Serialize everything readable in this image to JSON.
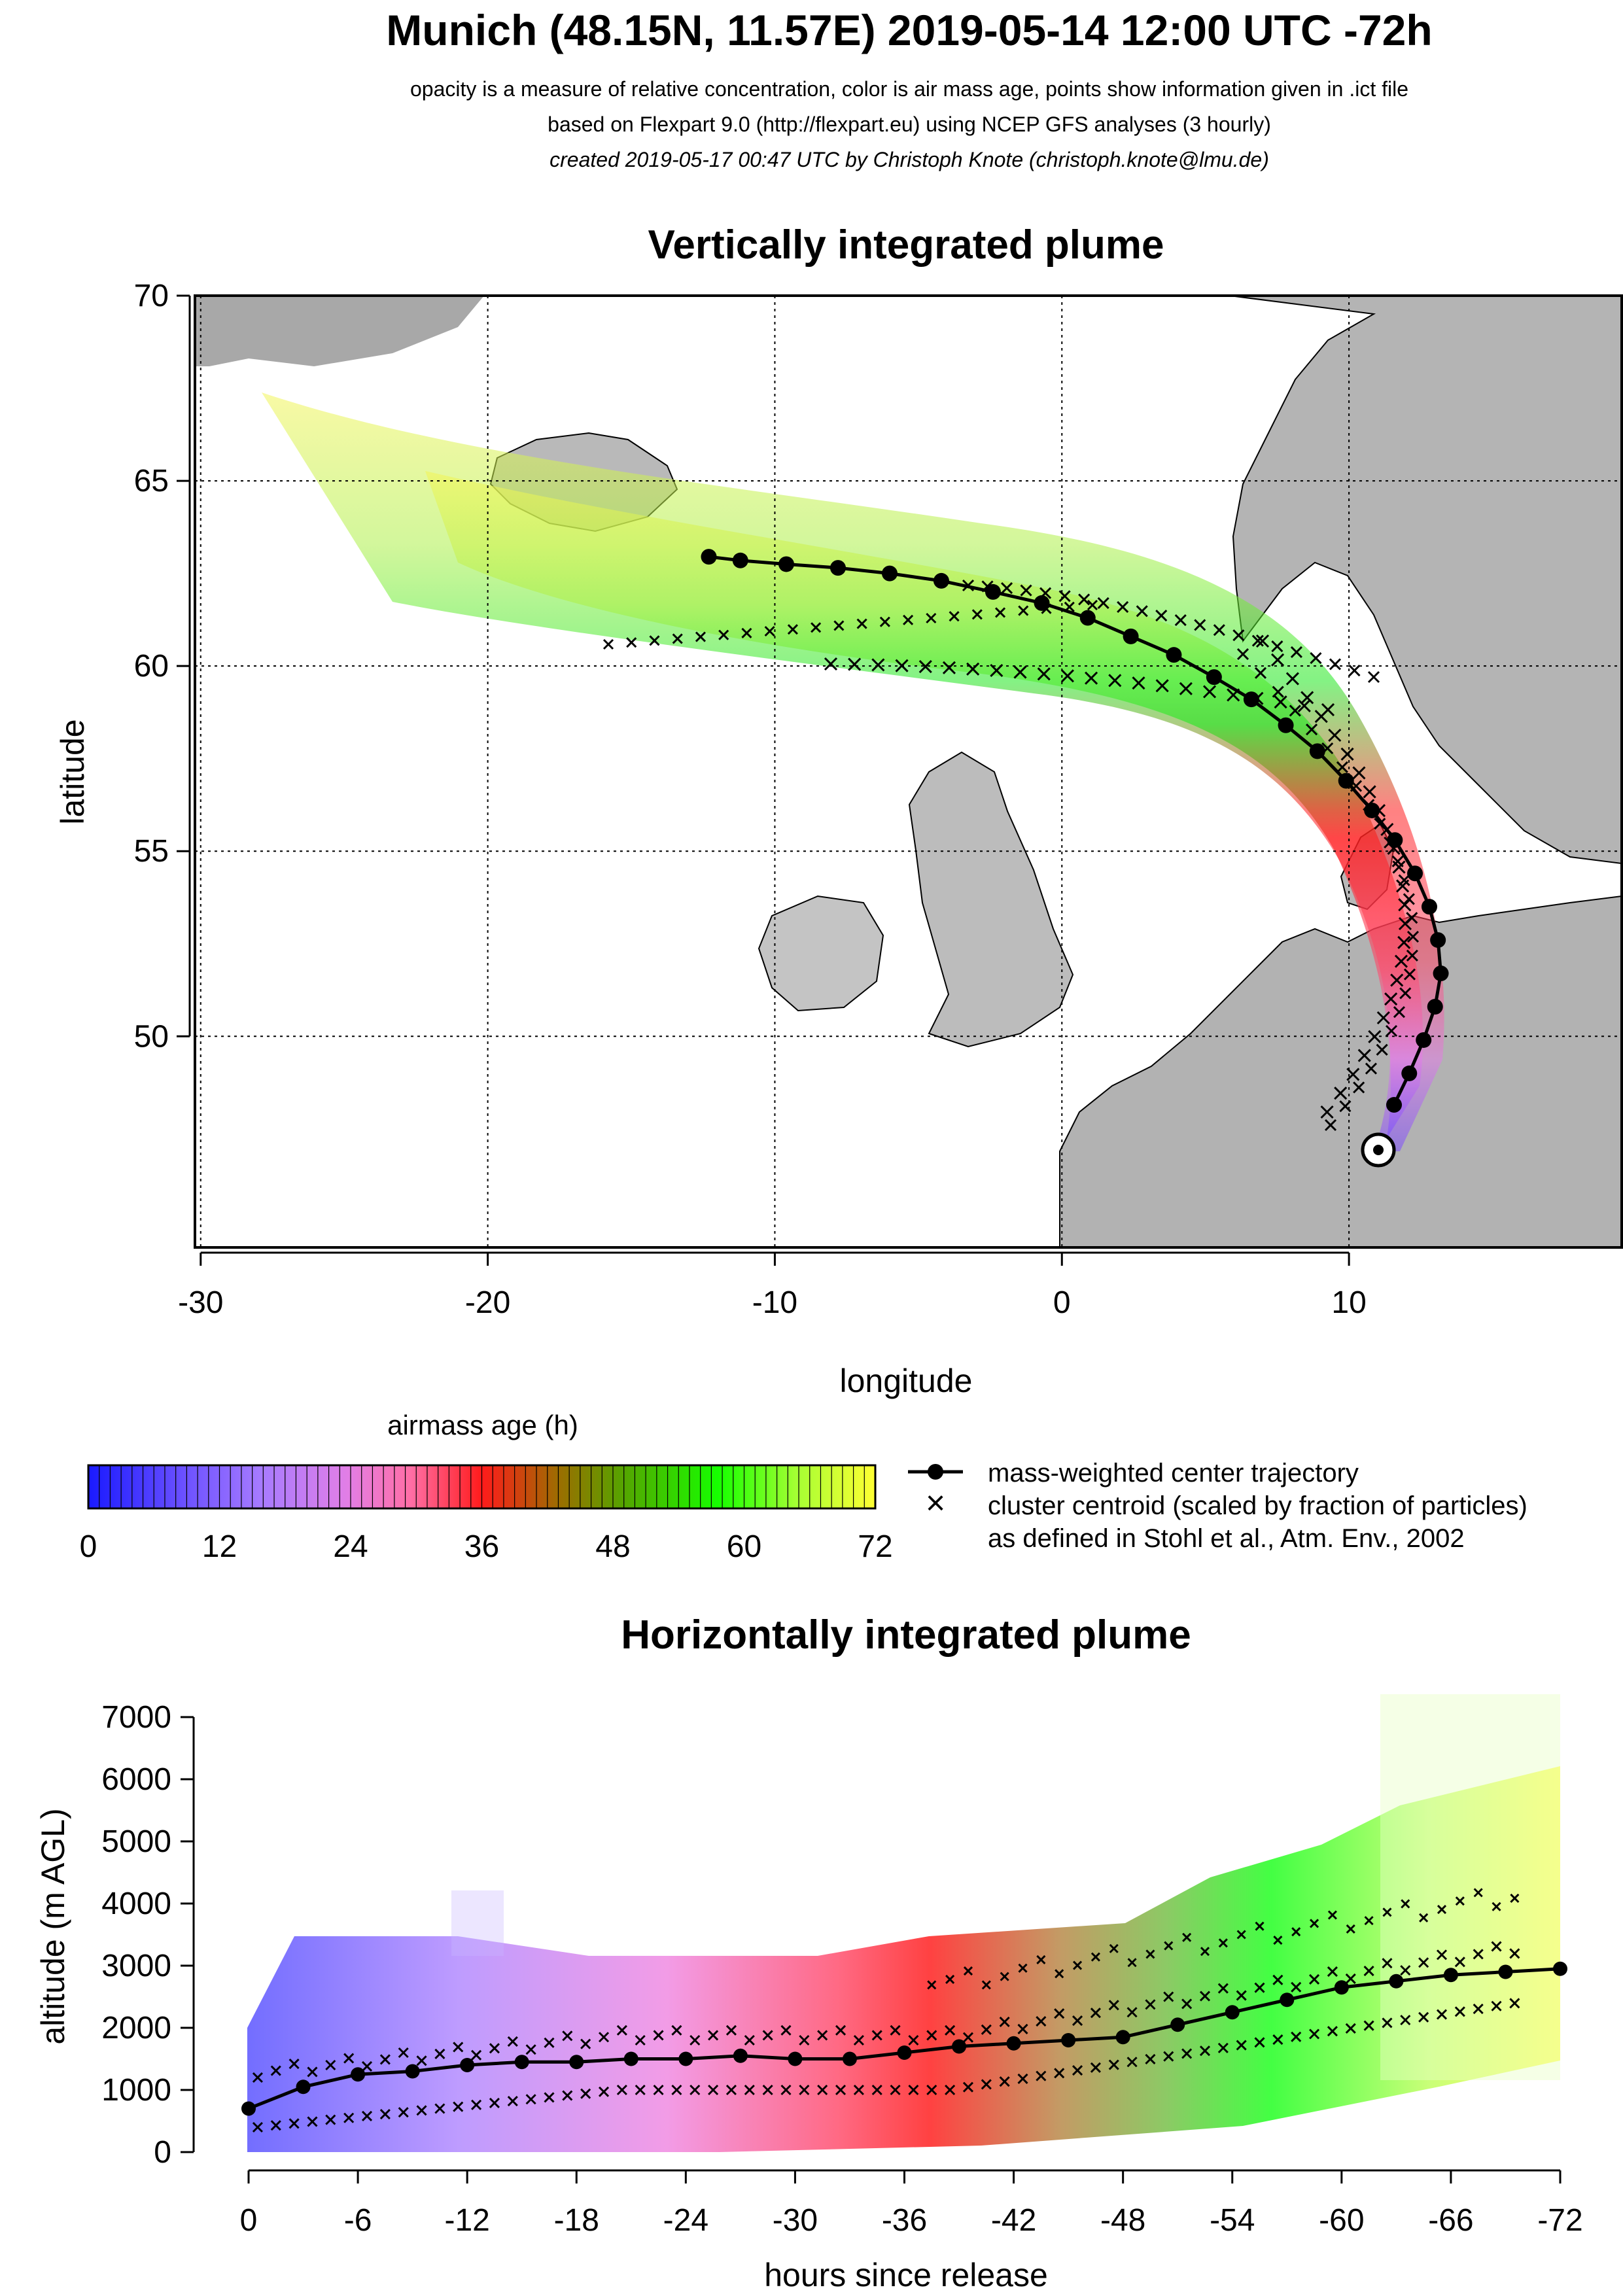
{
  "header": {
    "title": "Munich (48.15N, 11.57E) 2019-05-14 12:00 UTC -72h",
    "subtitle_1": "opacity is a measure of relative concentration, color is air mass age, points show information given in .ict file",
    "subtitle_2": "based on Flexpart 9.0 (http://flexpart.eu) using NCEP GFS analyses (3 hourly)",
    "subtitle_3": "created 2019-05-17 00:47 UTC by Christoph Knote (christoph.knote@lmu.de)"
  },
  "colors": {
    "land": "#bdbdbd",
    "frame": "#000000",
    "grid": "#000000"
  },
  "chart_data": [
    {
      "type": "line",
      "title": "Vertically integrated plume",
      "xlabel": "longitude",
      "ylabel": "latitude",
      "xlim": [
        -30.2,
        19.5
      ],
      "ylim": [
        44.3,
        70
      ],
      "x_ticks": [
        "-30",
        "-20",
        "-10",
        "0",
        "10"
      ],
      "y_ticks": [
        "50",
        "55",
        "60",
        "65",
        "70"
      ],
      "grid": true,
      "release_point": {
        "lon": 11.57,
        "lat": 48.15
      },
      "series": [
        {
          "name": "mass-weighted center trajectory",
          "lon": [
            11.57,
            12.1,
            12.6,
            13.0,
            13.2,
            13.1,
            12.8,
            12.3,
            11.6,
            10.8,
            9.9,
            8.9,
            7.8,
            6.6,
            5.3,
            3.9,
            2.4,
            0.9,
            -0.7,
            -2.4,
            -4.2,
            -6.0,
            -7.8,
            -9.6,
            -11.2,
            -12.3
          ],
          "lat": [
            48.15,
            49.0,
            49.9,
            50.8,
            51.7,
            52.6,
            53.5,
            54.4,
            55.3,
            56.1,
            56.9,
            57.7,
            58.4,
            59.1,
            59.7,
            60.3,
            60.8,
            61.3,
            61.7,
            62.0,
            62.3,
            62.5,
            62.65,
            62.75,
            62.85,
            62.95
          ]
        }
      ]
    },
    {
      "type": "line",
      "title": "Horizontally integrated plume",
      "xlabel": "hours since release",
      "ylabel": "altitude (m AGL)",
      "x_ticks": [
        "0",
        "-6",
        "-12",
        "-18",
        "-24",
        "-30",
        "-36",
        "-42",
        "-48",
        "-54",
        "-60",
        "-66",
        "-72"
      ],
      "y_ticks": [
        "0",
        "1000",
        "2000",
        "3000",
        "4000",
        "5000",
        "6000",
        "7000"
      ],
      "xlim": [
        0,
        -72
      ],
      "ylim": [
        0,
        7000
      ],
      "series": [
        {
          "name": "mass-weighted center trajectory",
          "hours": [
            0,
            -3,
            -6,
            -9,
            -12,
            -15,
            -18,
            -21,
            -24,
            -27,
            -30,
            -33,
            -36,
            -39,
            -42,
            -45,
            -48,
            -51,
            -54,
            -57,
            -60,
            -63,
            -66,
            -69,
            -72
          ],
          "altitude": [
            700,
            1050,
            1250,
            1300,
            1400,
            1450,
            1450,
            1500,
            1500,
            1550,
            1500,
            1500,
            1600,
            1700,
            1750,
            1800,
            1850,
            2050,
            2250,
            2450,
            2650,
            2750,
            2850,
            2900,
            2950
          ]
        }
      ]
    }
  ],
  "legend": {
    "colorbar_title": "airmass age (h)",
    "colorbar_ticks": [
      "0",
      "12",
      "24",
      "36",
      "48",
      "60",
      "72"
    ],
    "line_label": "mass-weighted center trajectory",
    "cross_label_1": "cluster centroid (scaled by fraction of particles)",
    "cross_label_2": "as defined in Stohl et al., Atm. Env., 2002",
    "cross_symbol": "×"
  }
}
